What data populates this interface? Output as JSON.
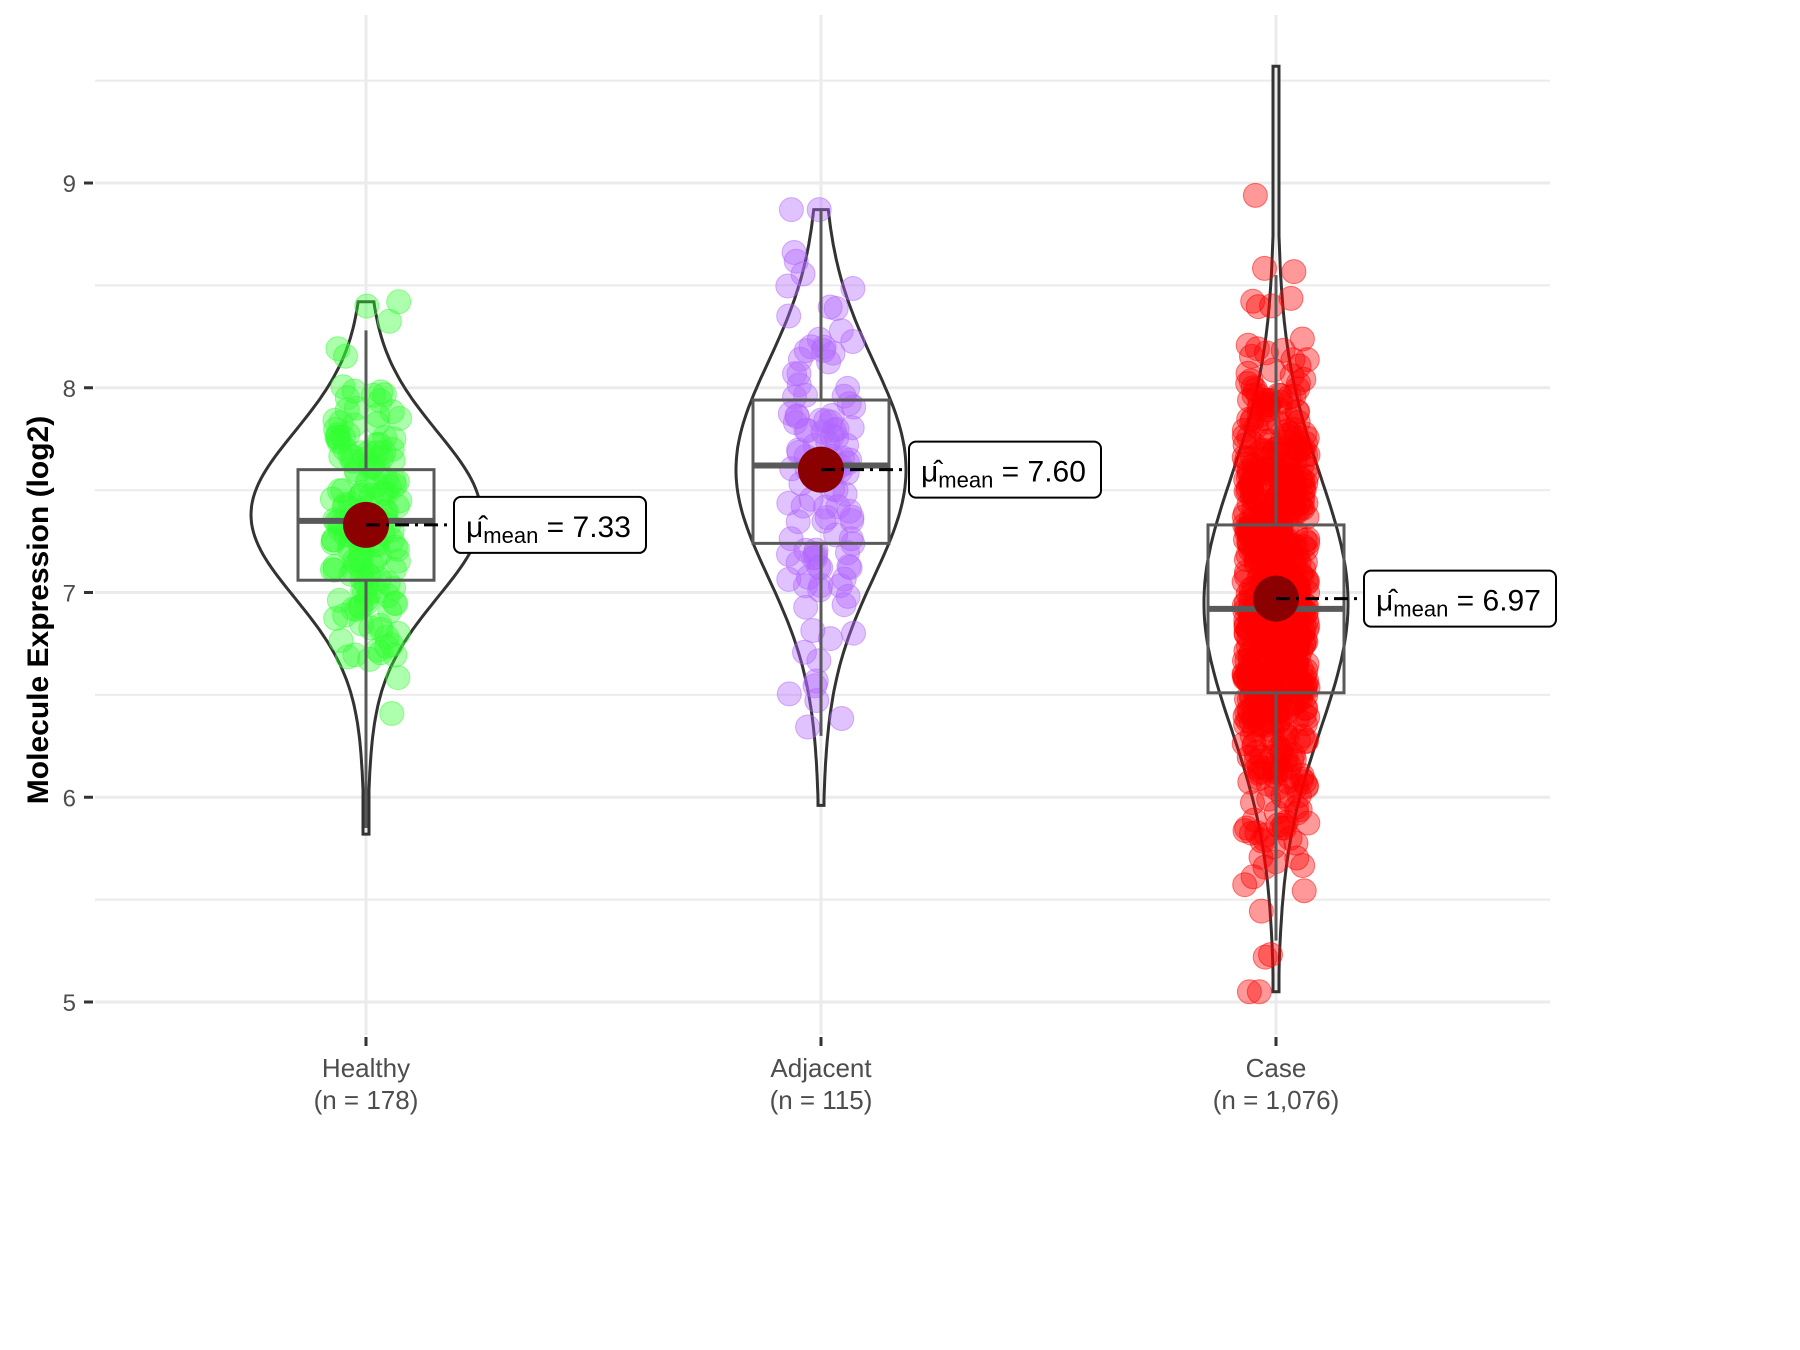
{
  "chart_data": {
    "type": "violin",
    "title": "",
    "xlabel": "",
    "ylabel": "Molecule Expression (log2)",
    "ylim": [
      4.8,
      9.8
    ],
    "yticks": [
      5,
      6,
      7,
      8,
      9
    ],
    "grid": true,
    "legend": "none",
    "mean_label_prefix": "μ̂",
    "mean_label_sub": "mean",
    "groups": [
      {
        "name": "Healthy",
        "n_label": "(n = 178)",
        "n": 178,
        "color": "#33ff33",
        "mean": 7.33,
        "mean_label": "7.33",
        "box": {
          "lower_whisker": 5.85,
          "q1": 7.06,
          "median": 7.35,
          "q3": 7.6,
          "upper_whisker": 8.28
        },
        "violin_range": [
          5.82,
          8.42
        ],
        "violin_peak": 7.38,
        "points_range": [
          5.82,
          8.42
        ]
      },
      {
        "name": "Adjacent",
        "n_label": "(n = 115)",
        "n": 115,
        "color": "#b266ff",
        "mean": 7.6,
        "mean_label": "7.60",
        "box": {
          "lower_whisker": 6.3,
          "q1": 7.24,
          "median": 7.62,
          "q3": 7.94,
          "upper_whisker": 8.87
        },
        "violin_range": [
          5.96,
          8.87
        ],
        "violin_peak": 7.6,
        "points_range": [
          5.96,
          8.87
        ]
      },
      {
        "name": "Case",
        "n_label": "(n = 1,076)",
        "n": 1076,
        "color": "#ff0000",
        "mean": 6.97,
        "mean_label": "6.97",
        "box": {
          "lower_whisker": 5.3,
          "q1": 6.51,
          "median": 6.92,
          "q3": 7.33,
          "upper_whisker": 8.55
        },
        "violin_range": [
          5.05,
          9.57
        ],
        "violin_peak": 6.95,
        "points_range": [
          5.05,
          9.58
        ]
      }
    ]
  }
}
